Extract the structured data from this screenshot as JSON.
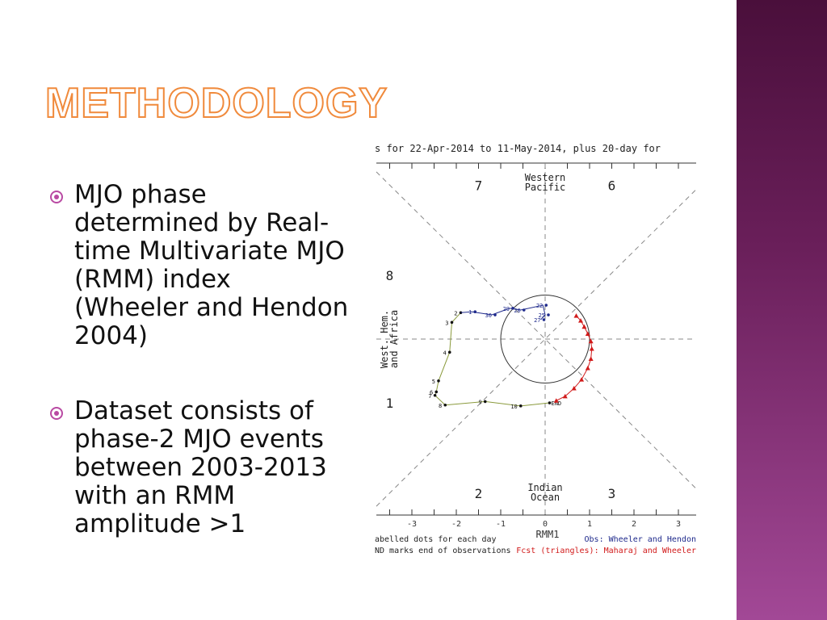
{
  "slide": {
    "title": "Methodology",
    "bullets": [
      "MJO phase determined by Real-time Multivariate MJO (RMM) index (Wheeler and Hendon 2004)",
      "Dataset consists of phase-2 MJO events between 2003-2013 with an RMM amplitude >1"
    ]
  },
  "colors": {
    "accent": "#f08a3c",
    "band": "#6a1f5a",
    "obs": "#1f2a8c",
    "fcst": "#d11a1a",
    "track": "#8a9a3c"
  },
  "chart_data": {
    "type": "scatter",
    "title": "s for 22-Apr-2014 to 11-May-2014, plus 20-day for",
    "xlabel": "RMM1",
    "xlim": [
      -3.8,
      3.4
    ],
    "ylim": [
      -4,
      4
    ],
    "x_ticks": [
      "-3",
      "-2",
      "-1",
      "0",
      "1",
      "2",
      "3"
    ],
    "x_tick_values": [
      -3,
      -2,
      -1,
      0,
      1,
      2,
      3
    ],
    "phases": [
      {
        "label": "7",
        "x": -1.5,
        "y": 3.5
      },
      {
        "label": "6",
        "x": 1.5,
        "y": 3.5
      },
      {
        "label": "8",
        "x": -3.5,
        "y": 1.45
      },
      {
        "label": "1",
        "x": -3.5,
        "y": -1.45
      },
      {
        "label": "2",
        "x": -1.5,
        "y": -3.5
      },
      {
        "label": "3",
        "x": 1.5,
        "y": -3.5
      }
    ],
    "regions": [
      {
        "lines": [
          "Western",
          "Pacific"
        ],
        "x": 0,
        "y": 3.6,
        "orient": "horizontal"
      },
      {
        "lines": [
          "Indian",
          "Ocean"
        ],
        "x": 0,
        "y": -3.45,
        "orient": "horizontal"
      },
      {
        "lines": [
          "West. Hem.",
          "and Africa"
        ],
        "x": -3.55,
        "y": 0,
        "orient": "vertical"
      }
    ],
    "observed": [
      {
        "label": "2",
        "x": -1.9,
        "y": 0.6
      },
      {
        "label": "3",
        "x": -2.1,
        "y": 0.38
      },
      {
        "label": "4",
        "x": -2.15,
        "y": -0.3
      },
      {
        "label": "5",
        "x": -2.4,
        "y": -0.95
      },
      {
        "label": "6",
        "x": -2.45,
        "y": -1.2
      },
      {
        "label": "7",
        "x": -2.48,
        "y": -1.28
      },
      {
        "label": "8",
        "x": -2.25,
        "y": -1.5
      },
      {
        "label": "9",
        "x": -1.35,
        "y": -1.42
      },
      {
        "label": "10",
        "x": -0.55,
        "y": -1.52
      },
      {
        "label": "END",
        "x": 0.1,
        "y": -1.45
      }
    ],
    "observed_top": [
      {
        "label": "1",
        "x": -1.65,
        "y": 0.62
      },
      {
        "label": "30",
        "x": -1.2,
        "y": 0.55
      },
      {
        "label": "29",
        "x": -0.8,
        "y": 0.7
      },
      {
        "label": "20",
        "x": -0.55,
        "y": 0.66
      },
      {
        "label": "22",
        "x": -0.05,
        "y": 0.77
      },
      {
        "label": "25",
        "x": 0.0,
        "y": 0.55
      },
      {
        "label": "27",
        "x": -0.1,
        "y": 0.44
      }
    ],
    "forecast": [
      {
        "x": 0.7,
        "y": 0.53
      },
      {
        "x": 0.8,
        "y": 0.42
      },
      {
        "x": 0.88,
        "y": 0.28
      },
      {
        "x": 0.96,
        "y": 0.12
      },
      {
        "x": 1.03,
        "y": -0.05
      },
      {
        "x": 1.05,
        "y": -0.22
      },
      {
        "x": 1.03,
        "y": -0.45
      },
      {
        "x": 0.96,
        "y": -0.66
      },
      {
        "x": 0.82,
        "y": -0.92
      },
      {
        "x": 0.65,
        "y": -1.12
      },
      {
        "x": 0.45,
        "y": -1.3
      },
      {
        "x": 0.25,
        "y": -1.4
      }
    ],
    "legend": {
      "left_1": "abelled dots for each day",
      "left_2": "ND marks end of observations",
      "right_1": "Obs: Wheeler and Hendon",
      "right_2": "Fcst (triangles): Maharaj and Wheeler"
    }
  }
}
